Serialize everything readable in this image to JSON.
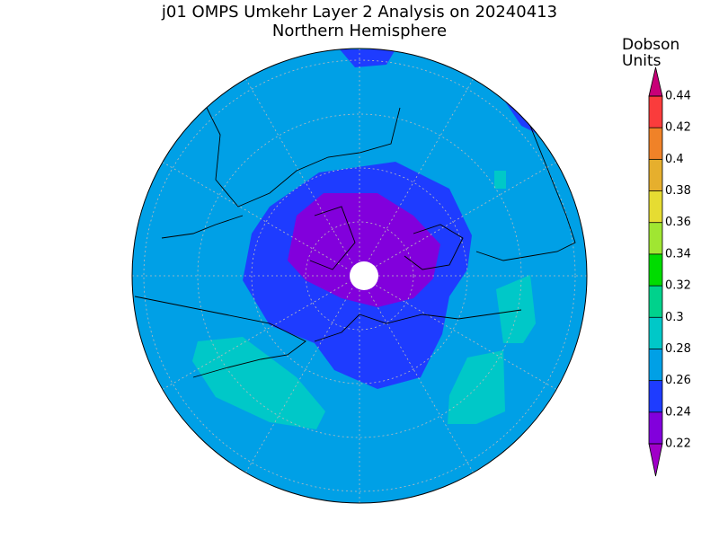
{
  "chart_data": {
    "type": "polar-map",
    "title": "j01 OMPS Umkehr Layer 2 Analysis on 20240413",
    "subtitle": "Northern Hemisphere",
    "colorbar_label": "Dobson Units",
    "ylim": [
      0.22,
      0.44
    ],
    "yticks": [
      0.22,
      0.24,
      0.26,
      0.28,
      0.3,
      0.32,
      0.34,
      0.36,
      0.38,
      0.4,
      0.42,
      0.44
    ],
    "colors": [
      "#8200dc",
      "#1e3cff",
      "#00a0e6",
      "#00c8c8",
      "#00d28c",
      "#00dc00",
      "#a0e632",
      "#e6dc32",
      "#e6af2d",
      "#f08228",
      "#fa3c3c"
    ],
    "under_color": "#a000c8",
    "over_color": "#c80078"
  }
}
